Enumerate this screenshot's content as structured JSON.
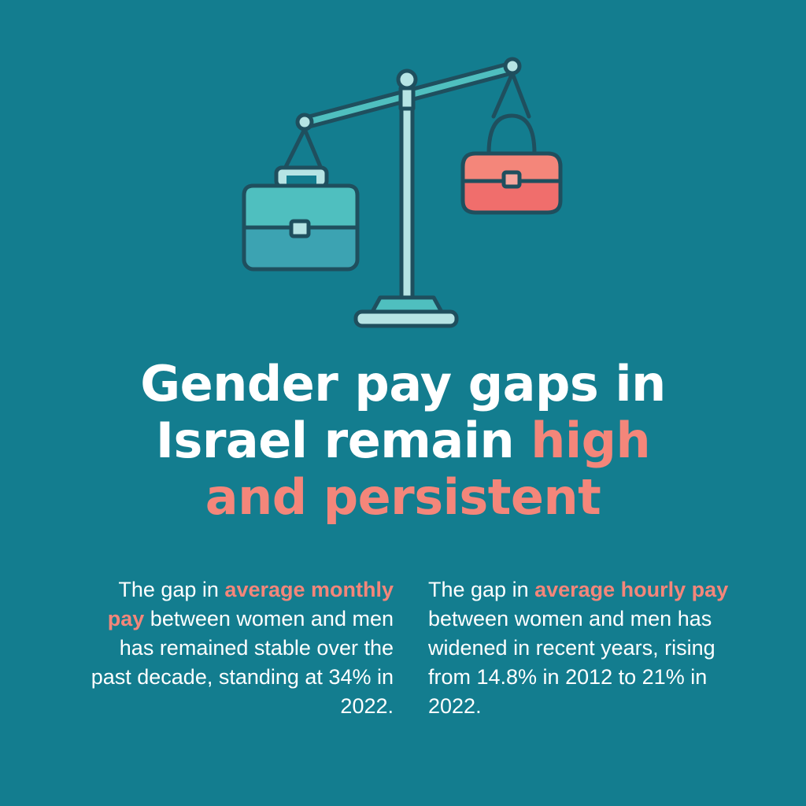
{
  "colors": {
    "background": "#137d8f",
    "accent": "#f4867a",
    "text": "#ffffff",
    "briefcase": "#4fbfbf",
    "handbag": "#f06e6c",
    "outline": "#1f4f5e"
  },
  "icons": {
    "scale": "balance-scale-icon",
    "briefcase": "briefcase-icon",
    "handbag": "handbag-icon"
  },
  "headline": {
    "line1": "Gender pay gaps in",
    "line2_plain": "Israel remain ",
    "line2_accent": "high",
    "line3_accent": "and persistent"
  },
  "stats": {
    "monthly": {
      "prefix": "The gap in ",
      "highlight": "average monthly pay",
      "suffix": " between women and men has remained stable over the past decade, standing at 34% in 2022."
    },
    "hourly": {
      "prefix": "The gap in ",
      "highlight": "average hourly pay",
      "suffix": " between women and men has widened in recent years, rising from 14.8% in 2012 to 21% in 2022."
    }
  }
}
